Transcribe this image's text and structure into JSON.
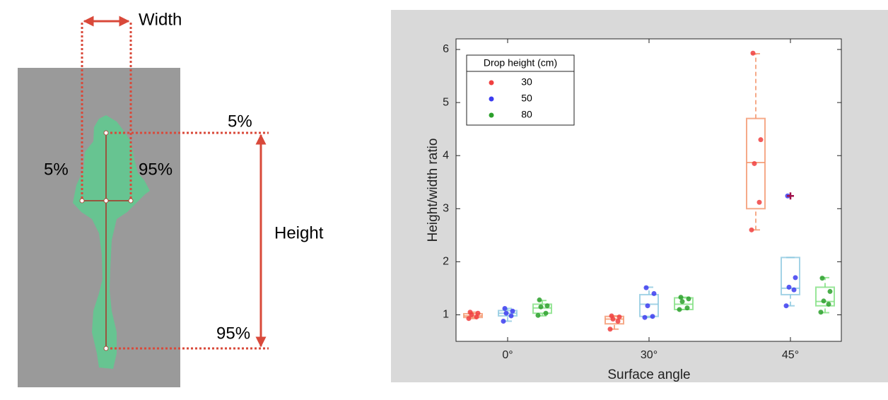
{
  "diagram": {
    "width_label": "Width",
    "left_label": "5%",
    "right_label": "95%",
    "top_label": "5%",
    "bottom_label": "95%",
    "height_label": "Height"
  },
  "chart_data": {
    "type": "box",
    "ylabel": "Height/width ratio",
    "xlabel": "Surface angle",
    "categories": [
      "0°",
      "30°",
      "45°"
    ],
    "ylim": [
      0.5,
      6.2
    ],
    "yticks": [
      1,
      2,
      3,
      4,
      5,
      6
    ],
    "legend": {
      "title": "Drop height (cm)",
      "position": "upper left"
    },
    "series": [
      {
        "name": "30",
        "color": "#f04040",
        "box_color": "#f4956c",
        "boxes": [
          {
            "whislo": 0.93,
            "q1": 0.95,
            "med": 0.98,
            "q3": 1.02,
            "whishi": 1.05
          },
          {
            "whislo": 0.73,
            "q1": 0.83,
            "med": 0.92,
            "q3": 0.97,
            "whishi": 0.98
          },
          {
            "whislo": 2.6,
            "q1": 3.0,
            "med": 3.87,
            "q3": 4.7,
            "whishi": 5.92
          }
        ],
        "points": [
          [
            0.93,
            0.96,
            1.0,
            1.03,
            1.05
          ],
          [
            0.73,
            0.88,
            0.92,
            0.96,
            0.98
          ],
          [
            2.6,
            3.12,
            3.85,
            4.3,
            5.93
          ]
        ],
        "outliers": [
          [],
          [],
          []
        ]
      },
      {
        "name": "50",
        "color": "#3c3cf0",
        "box_color": "#8cc8e0",
        "boxes": [
          {
            "whislo": 0.88,
            "q1": 0.98,
            "med": 1.03,
            "q3": 1.08,
            "whishi": 1.12
          },
          {
            "whislo": 0.95,
            "q1": 0.97,
            "med": 1.2,
            "q3": 1.38,
            "whishi": 1.52
          },
          {
            "whislo": 1.17,
            "q1": 1.38,
            "med": 1.5,
            "q3": 2.08,
            "whishi": 2.08
          }
        ],
        "points": [
          [
            0.88,
            0.98,
            1.03,
            1.07,
            1.12
          ],
          [
            0.95,
            0.97,
            1.17,
            1.4,
            1.51
          ],
          [
            1.17,
            1.47,
            1.52,
            1.7,
            3.24
          ]
        ],
        "outliers": [
          [],
          [],
          [
            3.24
          ]
        ]
      },
      {
        "name": "80",
        "color": "#2ca02c",
        "box_color": "#80e080",
        "boxes": [
          {
            "whislo": 0.98,
            "q1": 1.03,
            "med": 1.13,
            "q3": 1.2,
            "whishi": 1.27
          },
          {
            "whislo": 1.1,
            "q1": 1.1,
            "med": 1.2,
            "q3": 1.32,
            "whishi": 1.33
          },
          {
            "whislo": 1.04,
            "q1": 1.17,
            "med": 1.25,
            "q3": 1.52,
            "whishi": 1.7
          }
        ],
        "points": [
          [
            0.99,
            1.03,
            1.15,
            1.17,
            1.28
          ],
          [
            1.1,
            1.13,
            1.25,
            1.3,
            1.33
          ],
          [
            1.05,
            1.2,
            1.26,
            1.44,
            1.69
          ]
        ],
        "outliers": [
          [],
          [],
          []
        ]
      }
    ]
  }
}
